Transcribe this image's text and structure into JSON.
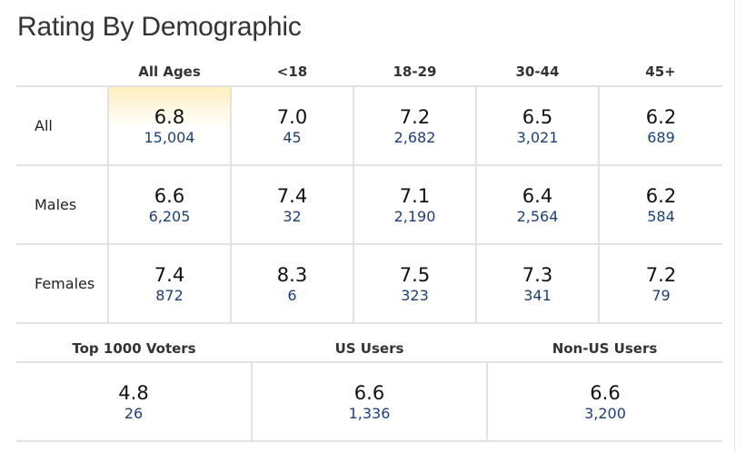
{
  "title": "Rating By Demographic",
  "demographic": {
    "headers": [
      "",
      "All Ages",
      "<18",
      "18-29",
      "30-44",
      "45+"
    ],
    "rows": [
      {
        "label": "All",
        "cells": [
          {
            "rating": "6.8",
            "votes": "15,004"
          },
          {
            "rating": "7.0",
            "votes": "45"
          },
          {
            "rating": "7.2",
            "votes": "2,682"
          },
          {
            "rating": "6.5",
            "votes": "3,021"
          },
          {
            "rating": "6.2",
            "votes": "689"
          }
        ]
      },
      {
        "label": "Males",
        "cells": [
          {
            "rating": "6.6",
            "votes": "6,205"
          },
          {
            "rating": "7.4",
            "votes": "32"
          },
          {
            "rating": "7.1",
            "votes": "2,190"
          },
          {
            "rating": "6.4",
            "votes": "2,564"
          },
          {
            "rating": "6.2",
            "votes": "584"
          }
        ]
      },
      {
        "label": "Females",
        "cells": [
          {
            "rating": "7.4",
            "votes": "872"
          },
          {
            "rating": "8.3",
            "votes": "6"
          },
          {
            "rating": "7.5",
            "votes": "323"
          },
          {
            "rating": "7.3",
            "votes": "341"
          },
          {
            "rating": "7.2",
            "votes": "79"
          }
        ]
      }
    ]
  },
  "voters": {
    "headers": [
      "Top 1000 Voters",
      "US Users",
      "Non-US Users"
    ],
    "cells": [
      {
        "rating": "4.8",
        "votes": "26"
      },
      {
        "rating": "6.6",
        "votes": "1,336"
      },
      {
        "rating": "6.6",
        "votes": "3,200"
      }
    ]
  },
  "colors": {
    "highlight": "#fdeebc",
    "vote_count": "#1d3f78",
    "grid": "#e2e2e2"
  }
}
